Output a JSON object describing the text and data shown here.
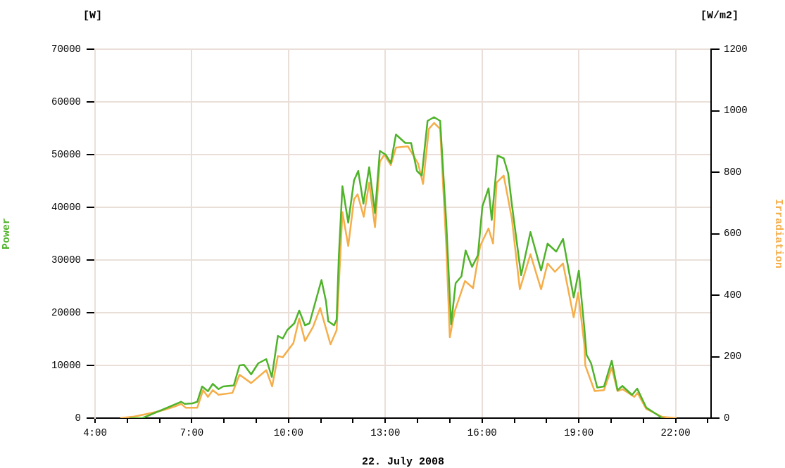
{
  "chart_data": {
    "type": "line",
    "xlabel": "22. July 2008",
    "ylabel": "Power",
    "y2label": "Irradiation",
    "annotations": [
      "[W]",
      "[W/m2]"
    ],
    "xlim": [
      4,
      23.1
    ],
    "xticks": [
      {
        "value": 4,
        "label": "4:00"
      },
      {
        "value": 5,
        "label": null
      },
      {
        "value": 6,
        "label": null
      },
      {
        "value": 7,
        "label": "7:00"
      },
      {
        "value": 8,
        "label": null
      },
      {
        "value": 9,
        "label": null
      },
      {
        "value": 10,
        "label": "10:00"
      },
      {
        "value": 11,
        "label": null
      },
      {
        "value": 12,
        "label": null
      },
      {
        "value": 13,
        "label": "13:00"
      },
      {
        "value": 14,
        "label": null
      },
      {
        "value": 15,
        "label": null
      },
      {
        "value": 16,
        "label": "16:00"
      },
      {
        "value": 17,
        "label": null
      },
      {
        "value": 18,
        "label": null
      },
      {
        "value": 19,
        "label": "19:00"
      },
      {
        "value": 20,
        "label": null
      },
      {
        "value": 21,
        "label": null
      },
      {
        "value": 22,
        "label": "22:00"
      },
      {
        "value": 23,
        "label": null
      }
    ],
    "ylim": [
      0,
      70000
    ],
    "yticks": [
      0,
      10000,
      20000,
      30000,
      40000,
      50000,
      60000,
      70000
    ],
    "y2lim": [
      0,
      1200
    ],
    "y2ticks": [
      0,
      200,
      400,
      600,
      800,
      1000,
      1200
    ],
    "grid": true,
    "marker": "none",
    "line_style": "solid",
    "series": [
      {
        "color": "#4fb32a",
        "x": [
          5.1,
          5.47,
          6.67,
          6.78,
          7.02,
          7.17,
          7.32,
          7.5,
          7.65,
          7.83,
          7.97,
          8.3,
          8.48,
          8.62,
          8.84,
          9.06,
          9.31,
          9.48,
          9.67,
          9.82,
          9.96,
          10.18,
          10.33,
          10.51,
          10.65,
          11.02,
          11.16,
          11.23,
          11.41,
          11.49,
          11.56,
          11.67,
          11.85,
          12.03,
          12.16,
          12.32,
          12.5,
          12.68,
          12.83,
          13.01,
          13.17,
          13.33,
          13.62,
          13.8,
          13.98,
          14.13,
          14.31,
          14.51,
          14.7,
          14.89,
          15.04,
          15.18,
          15.36,
          15.49,
          15.69,
          15.87,
          16.01,
          16.2,
          16.3,
          16.48,
          16.67,
          16.81,
          16.92,
          17.21,
          17.5,
          17.83,
          18.03,
          18.3,
          18.51,
          18.84,
          19.0,
          19.17,
          19.24,
          19.38,
          19.57,
          19.78,
          20.02,
          20.2,
          20.35,
          20.65,
          20.81,
          21.09,
          21.59
        ],
        "values": [
          0,
          0,
          3100,
          2700,
          2800,
          3100,
          6000,
          5100,
          6500,
          5500,
          6000,
          6200,
          10000,
          10100,
          8300,
          10400,
          11200,
          7800,
          15600,
          15100,
          16700,
          18000,
          20400,
          17600,
          18000,
          26200,
          22200,
          18400,
          17600,
          18700,
          30900,
          44000,
          37100,
          45100,
          46900,
          40700,
          47600,
          38900,
          50700,
          50000,
          48400,
          53800,
          52200,
          52200,
          46900,
          46000,
          56400,
          57100,
          56400,
          37100,
          17800,
          25600,
          26900,
          31800,
          28700,
          30900,
          40200,
          43600,
          37600,
          49800,
          49300,
          46400,
          40700,
          27100,
          35300,
          28000,
          33100,
          31600,
          34000,
          22900,
          28000,
          17100,
          12000,
          10400,
          5800,
          6000,
          10900,
          5300,
          6100,
          4400,
          5600,
          2000,
          0
        ]
      },
      {
        "color": "#f5ae4a",
        "axis": "y2",
        "x": [
          4.78,
          5.22,
          5.72,
          6.09,
          6.45,
          6.67,
          6.81,
          7.17,
          7.35,
          7.5,
          7.65,
          7.83,
          8.26,
          8.48,
          8.84,
          9.31,
          9.49,
          9.67,
          9.82,
          10.15,
          10.33,
          10.51,
          10.76,
          10.98,
          11.3,
          11.49,
          11.67,
          11.85,
          12.03,
          12.14,
          12.33,
          12.5,
          12.68,
          12.83,
          12.97,
          13.17,
          13.33,
          13.7,
          13.88,
          14.02,
          14.17,
          14.35,
          14.51,
          14.7,
          14.89,
          15.0,
          15.15,
          15.47,
          15.72,
          15.94,
          16.2,
          16.34,
          16.45,
          16.67,
          16.92,
          17.17,
          17.5,
          17.83,
          18.03,
          18.26,
          18.51,
          18.84,
          18.98,
          19.17,
          19.2,
          19.49,
          19.78,
          20.02,
          20.2,
          20.36,
          20.72,
          20.82,
          21.09,
          21.59,
          22.03
        ],
        "values": [
          0,
          5,
          16,
          25,
          37,
          46,
          34,
          34,
          91,
          69,
          91,
          76,
          82,
          141,
          114,
          156,
          103,
          202,
          198,
          244,
          324,
          251,
          297,
          358,
          240,
          286,
          670,
          560,
          712,
          728,
          655,
          766,
          621,
          834,
          857,
          823,
          880,
          884,
          853,
          827,
          762,
          941,
          960,
          941,
          560,
          263,
          347,
          446,
          423,
          560,
          617,
          568,
          766,
          789,
          651,
          419,
          533,
          419,
          503,
          476,
          503,
          328,
          408,
          240,
          171,
          88,
          91,
          164,
          88,
          94,
          69,
          82,
          30,
          4,
          0
        ]
      }
    ]
  }
}
